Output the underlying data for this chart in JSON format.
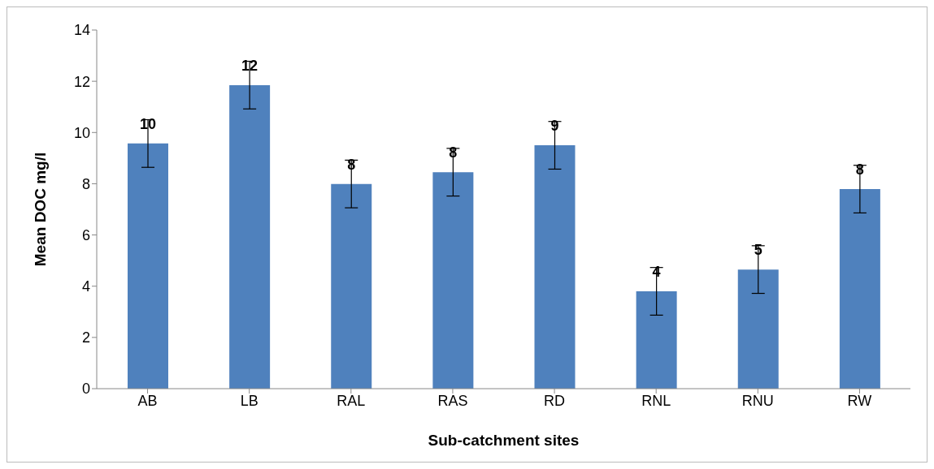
{
  "chart_data": {
    "type": "bar",
    "xlabel": "Sub-catchment sites",
    "ylabel": "Mean DOC mg/l",
    "categories": [
      "AB",
      "LB",
      "RAL",
      "RAS",
      "RD",
      "RNL",
      "RNU",
      "RW"
    ],
    "values": [
      9.57,
      11.85,
      7.99,
      8.45,
      9.5,
      3.8,
      4.65,
      7.79
    ],
    "errors": [
      0.93,
      0.93,
      0.93,
      0.93,
      0.93,
      0.93,
      0.93,
      0.93
    ],
    "value_labels": [
      "10",
      "12",
      "8",
      "8",
      "9",
      "4",
      "5",
      "8"
    ],
    "color": "#4f81bd",
    "ylim": [
      0,
      14
    ],
    "yticks": [
      0,
      2,
      4,
      6,
      8,
      10,
      12,
      14
    ],
    "grid": false,
    "legend": false
  }
}
